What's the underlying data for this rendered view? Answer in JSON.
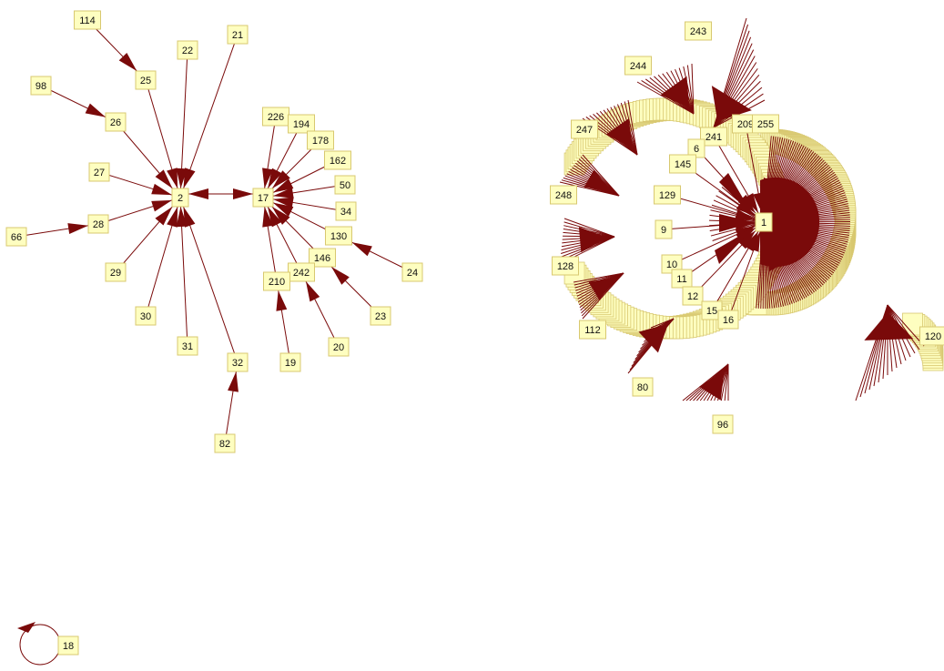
{
  "diagram": {
    "edge_color": "#7a0a0a",
    "node_fill": "#fefec0",
    "node_border": "#d8c870",
    "nodes": [
      {
        "id": "n114",
        "label": "114"
      },
      {
        "id": "n25",
        "label": "25"
      },
      {
        "id": "n22",
        "label": "22"
      },
      {
        "id": "n21",
        "label": "21"
      },
      {
        "id": "n98",
        "label": "98"
      },
      {
        "id": "n26",
        "label": "26"
      },
      {
        "id": "n27",
        "label": "27"
      },
      {
        "id": "n2",
        "label": "2"
      },
      {
        "id": "n66",
        "label": "66"
      },
      {
        "id": "n28",
        "label": "28"
      },
      {
        "id": "n29",
        "label": "29"
      },
      {
        "id": "n30",
        "label": "30"
      },
      {
        "id": "n31",
        "label": "31"
      },
      {
        "id": "n32",
        "label": "32"
      },
      {
        "id": "n82",
        "label": "82"
      },
      {
        "id": "n17",
        "label": "17"
      },
      {
        "id": "n226",
        "label": "226"
      },
      {
        "id": "n194",
        "label": "194"
      },
      {
        "id": "n178",
        "label": "178"
      },
      {
        "id": "n162",
        "label": "162"
      },
      {
        "id": "n50",
        "label": "50"
      },
      {
        "id": "n34",
        "label": "34"
      },
      {
        "id": "n130",
        "label": "130"
      },
      {
        "id": "n146",
        "label": "146"
      },
      {
        "id": "n242",
        "label": "242"
      },
      {
        "id": "n210",
        "label": "210"
      },
      {
        "id": "n24",
        "label": "24"
      },
      {
        "id": "n23",
        "label": "23"
      },
      {
        "id": "n20",
        "label": "20"
      },
      {
        "id": "n19",
        "label": "19"
      },
      {
        "id": "n18",
        "label": "18"
      },
      {
        "id": "n1",
        "label": "1"
      },
      {
        "id": "n243",
        "label": "243"
      },
      {
        "id": "n244",
        "label": "244"
      },
      {
        "id": "n247",
        "label": "247"
      },
      {
        "id": "n248",
        "label": "248"
      },
      {
        "id": "n128",
        "label": "128"
      },
      {
        "id": "n112",
        "label": "112"
      },
      {
        "id": "n80",
        "label": "80"
      },
      {
        "id": "n96",
        "label": "96"
      },
      {
        "id": "n120",
        "label": "120"
      },
      {
        "id": "n209",
        "label": "209"
      },
      {
        "id": "n255",
        "label": "255"
      },
      {
        "id": "n241",
        "label": "241"
      },
      {
        "id": "n6",
        "label": "6"
      },
      {
        "id": "n145",
        "label": "145"
      },
      {
        "id": "n129",
        "label": "129"
      },
      {
        "id": "n9",
        "label": "9"
      },
      {
        "id": "n10",
        "label": "10"
      },
      {
        "id": "n11",
        "label": "11"
      },
      {
        "id": "n12",
        "label": "12"
      },
      {
        "id": "n15",
        "label": "15"
      },
      {
        "id": "n16",
        "label": "16"
      }
    ],
    "edges": [
      [
        "n114",
        "n25"
      ],
      [
        "n25",
        "n2"
      ],
      [
        "n22",
        "n2"
      ],
      [
        "n21",
        "n2"
      ],
      [
        "n98",
        "n26"
      ],
      [
        "n26",
        "n2"
      ],
      [
        "n27",
        "n2"
      ],
      [
        "n66",
        "n28"
      ],
      [
        "n28",
        "n2"
      ],
      [
        "n29",
        "n2"
      ],
      [
        "n30",
        "n2"
      ],
      [
        "n31",
        "n2"
      ],
      [
        "n32",
        "n2"
      ],
      [
        "n82",
        "n32"
      ],
      [
        "n2",
        "n17"
      ],
      [
        "n17",
        "n2"
      ],
      [
        "n226",
        "n17"
      ],
      [
        "n194",
        "n17"
      ],
      [
        "n178",
        "n17"
      ],
      [
        "n162",
        "n17"
      ],
      [
        "n50",
        "n17"
      ],
      [
        "n34",
        "n17"
      ],
      [
        "n130",
        "n17"
      ],
      [
        "n146",
        "n17"
      ],
      [
        "n242",
        "n17"
      ],
      [
        "n210",
        "n17"
      ],
      [
        "n24",
        "n130"
      ],
      [
        "n23",
        "n146"
      ],
      [
        "n20",
        "n242"
      ],
      [
        "n19",
        "n210"
      ],
      [
        "n18",
        "n18"
      ],
      [
        "n241",
        "n1"
      ],
      [
        "n6",
        "n1"
      ],
      [
        "n145",
        "n1"
      ],
      [
        "n129",
        "n1"
      ],
      [
        "n9",
        "n1"
      ],
      [
        "n10",
        "n1"
      ],
      [
        "n11",
        "n1"
      ],
      [
        "n12",
        "n1"
      ],
      [
        "n15",
        "n1"
      ],
      [
        "n16",
        "n1"
      ],
      [
        "n209",
        "n1"
      ]
    ],
    "fans": [
      {
        "name": "fan-243",
        "target": "n241"
      },
      {
        "name": "fan-244",
        "target": "n6"
      },
      {
        "name": "fan-247",
        "target": "n145"
      },
      {
        "name": "fan-248",
        "target": "n129"
      },
      {
        "name": "fan-128",
        "target": "n9"
      },
      {
        "name": "fan-112",
        "target": "n10"
      },
      {
        "name": "fan-80",
        "target": "n12"
      },
      {
        "name": "fan-96",
        "target": "n16"
      },
      {
        "name": "fan-120",
        "target": "n1"
      },
      {
        "name": "fan-1",
        "target": "n1"
      }
    ]
  }
}
